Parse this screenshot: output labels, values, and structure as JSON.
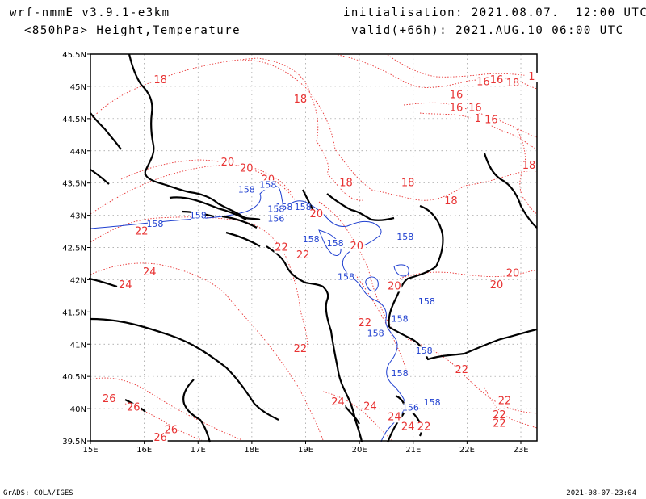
{
  "header": {
    "model": "wrf-nmmE_v3.9.1-e3km",
    "field": "<850hPa> Height,Temperature",
    "init": "initialisation: 2021.08.07.  12:00 UTC",
    "valid": "valid(+66h): 2021.AUG.10 06:00 UTC"
  },
  "footer": {
    "left": "GrADS: COLA/IGES",
    "right": "2021-08-07-23:04"
  },
  "map": {
    "lon_range": [
      15,
      23.3
    ],
    "lat_range": [
      39.5,
      45.5
    ],
    "lon_ticks": [
      "15E",
      "16E",
      "17E",
      "18E",
      "19E",
      "20E",
      "21E",
      "22E",
      "23E"
    ],
    "lat_ticks": [
      "39.5N",
      "40N",
      "40.5N",
      "41N",
      "41.5N",
      "42N",
      "42.5N",
      "43N",
      "43.5N",
      "44N",
      "44.5N",
      "45N",
      "45.5N"
    ],
    "grid": true,
    "colors": {
      "temperature": "#e83232",
      "height": "#2040d0",
      "coast": "#000000",
      "grid": "#999999"
    },
    "temperature_labels": [
      {
        "lon": 16.3,
        "lat": 45.05,
        "text": "18"
      },
      {
        "lon": 18.9,
        "lat": 44.75,
        "text": "18"
      },
      {
        "lon": 21.8,
        "lat": 44.82,
        "text": "16"
      },
      {
        "lon": 22.3,
        "lat": 45.02,
        "text": "16"
      },
      {
        "lon": 22.55,
        "lat": 45.05,
        "text": "16"
      },
      {
        "lon": 22.85,
        "lat": 45.0,
        "text": "18"
      },
      {
        "lon": 23.2,
        "lat": 45.1,
        "text": "1"
      },
      {
        "lon": 21.8,
        "lat": 44.62,
        "text": "16"
      },
      {
        "lon": 22.15,
        "lat": 44.62,
        "text": "16"
      },
      {
        "lon": 22.45,
        "lat": 44.43,
        "text": "16"
      },
      {
        "lon": 22.2,
        "lat": 44.45,
        "text": "1"
      },
      {
        "lon": 23.15,
        "lat": 43.72,
        "text": "18"
      },
      {
        "lon": 17.55,
        "lat": 43.77,
        "text": "20"
      },
      {
        "lon": 17.9,
        "lat": 43.68,
        "text": "20"
      },
      {
        "lon": 18.3,
        "lat": 43.5,
        "text": "20"
      },
      {
        "lon": 19.75,
        "lat": 43.45,
        "text": "18"
      },
      {
        "lon": 20.9,
        "lat": 43.45,
        "text": "18"
      },
      {
        "lon": 21.7,
        "lat": 43.17,
        "text": "18"
      },
      {
        "lon": 19.2,
        "lat": 42.97,
        "text": "20"
      },
      {
        "lon": 19.95,
        "lat": 42.47,
        "text": "20"
      },
      {
        "lon": 18.55,
        "lat": 42.45,
        "text": "22"
      },
      {
        "lon": 18.95,
        "lat": 42.33,
        "text": "22"
      },
      {
        "lon": 15.95,
        "lat": 42.7,
        "text": "22"
      },
      {
        "lon": 16.1,
        "lat": 42.07,
        "text": "24"
      },
      {
        "lon": 15.65,
        "lat": 41.87,
        "text": "24"
      },
      {
        "lon": 20.65,
        "lat": 41.85,
        "text": "20"
      },
      {
        "lon": 22.85,
        "lat": 42.05,
        "text": "20"
      },
      {
        "lon": 22.55,
        "lat": 41.87,
        "text": "20"
      },
      {
        "lon": 20.1,
        "lat": 41.28,
        "text": "22"
      },
      {
        "lon": 18.9,
        "lat": 40.88,
        "text": "22"
      },
      {
        "lon": 21.9,
        "lat": 40.55,
        "text": "22"
      },
      {
        "lon": 19.6,
        "lat": 40.05,
        "text": "24"
      },
      {
        "lon": 20.2,
        "lat": 39.98,
        "text": "24"
      },
      {
        "lon": 20.65,
        "lat": 39.82,
        "text": "24"
      },
      {
        "lon": 20.9,
        "lat": 39.67,
        "text": "24"
      },
      {
        "lon": 21.2,
        "lat": 39.67,
        "text": "22"
      },
      {
        "lon": 15.35,
        "lat": 40.1,
        "text": "26"
      },
      {
        "lon": 15.8,
        "lat": 39.97,
        "text": "26"
      },
      {
        "lon": 16.3,
        "lat": 39.5,
        "text": "26"
      },
      {
        "lon": 16.5,
        "lat": 39.62,
        "text": "26"
      },
      {
        "lon": 22.7,
        "lat": 40.07,
        "text": "22"
      },
      {
        "lon": 22.6,
        "lat": 39.85,
        "text": "22"
      },
      {
        "lon": 22.6,
        "lat": 39.72,
        "text": "22"
      }
    ],
    "height_labels": [
      {
        "lon": 17.9,
        "lat": 43.35,
        "text": "158"
      },
      {
        "lon": 18.3,
        "lat": 43.43,
        "text": "158"
      },
      {
        "lon": 17.0,
        "lat": 42.95,
        "text": "158"
      },
      {
        "lon": 16.2,
        "lat": 42.82,
        "text": "158"
      },
      {
        "lon": 18.6,
        "lat": 43.08,
        "text": "158"
      },
      {
        "lon": 18.95,
        "lat": 43.08,
        "text": "158"
      },
      {
        "lon": 18.45,
        "lat": 42.9,
        "text": "156"
      },
      {
        "lon": 18.45,
        "lat": 43.05,
        "text": "158"
      },
      {
        "lon": 19.1,
        "lat": 42.58,
        "text": "158"
      },
      {
        "lon": 19.55,
        "lat": 42.52,
        "text": "158"
      },
      {
        "lon": 20.85,
        "lat": 42.62,
        "text": "158"
      },
      {
        "lon": 19.75,
        "lat": 42.0,
        "text": "158"
      },
      {
        "lon": 21.25,
        "lat": 41.62,
        "text": "158"
      },
      {
        "lon": 20.75,
        "lat": 41.35,
        "text": "158"
      },
      {
        "lon": 20.3,
        "lat": 41.12,
        "text": "158"
      },
      {
        "lon": 21.2,
        "lat": 40.85,
        "text": "158"
      },
      {
        "lon": 20.75,
        "lat": 40.5,
        "text": "158"
      },
      {
        "lon": 21.35,
        "lat": 40.05,
        "text": "158"
      },
      {
        "lon": 20.95,
        "lat": 39.97,
        "text": "156"
      }
    ]
  }
}
